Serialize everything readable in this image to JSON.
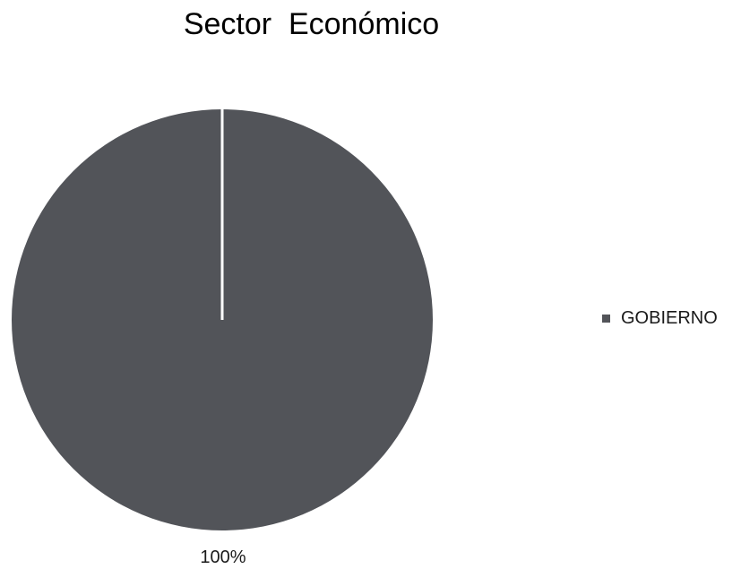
{
  "chart_data": {
    "type": "pie",
    "title": "Sector  Económico",
    "categories": [
      "GOBIERNO"
    ],
    "values": [
      100
    ],
    "data_labels": [
      "100%"
    ],
    "legend": {
      "placement": "right",
      "entries": [
        "GOBIERNO"
      ]
    },
    "colors": [
      "#525459"
    ]
  }
}
